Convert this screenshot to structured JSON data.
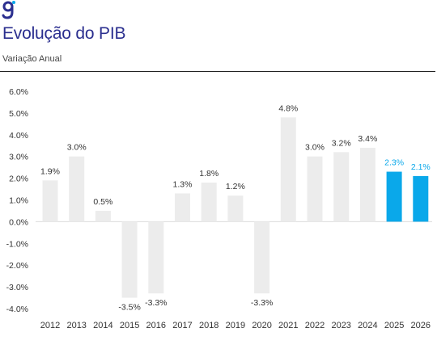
{
  "header": {
    "logo_icon": "g-logo-icon",
    "title": "Evolução do PIB",
    "subtitle": "Variação Anual"
  },
  "colors": {
    "actual": "#ececec",
    "forecast": "#0aa8ea",
    "label": "#333333",
    "forecast_label": "#0aa8ea",
    "brand": "#2b2f8f"
  },
  "chart_data": {
    "type": "bar",
    "title": "Evolução do PIB",
    "subtitle": "Variação Anual",
    "xlabel": "",
    "ylabel": "",
    "ylim": [
      -4.0,
      6.0
    ],
    "ytick_step": 1.0,
    "yticks": [
      "6.0%",
      "5.0%",
      "4.0%",
      "3.0%",
      "2.0%",
      "1.0%",
      "0.0%",
      "-1.0%",
      "-2.0%",
      "-3.0%",
      "-4.0%"
    ],
    "grid": false,
    "categories": [
      "2012",
      "2013",
      "2014",
      "2015",
      "2016",
      "2017",
      "2018",
      "2019",
      "2020",
      "2021",
      "2022",
      "2023",
      "2024",
      "2025",
      "2026"
    ],
    "values": [
      1.9,
      3.0,
      0.5,
      -3.5,
      -3.3,
      1.3,
      1.8,
      1.2,
      -3.3,
      4.8,
      3.0,
      3.2,
      3.4,
      2.3,
      2.1
    ],
    "labels": [
      "1.9%",
      "3.0%",
      "0.5%",
      "-3.5%",
      "-3.3%",
      "1.3%",
      "1.8%",
      "1.2%",
      "-3.3%",
      "4.8%",
      "3.0%",
      "3.2%",
      "3.4%",
      "2.3%",
      "2.1%"
    ],
    "highlighted": [
      "2025",
      "2026"
    ]
  }
}
